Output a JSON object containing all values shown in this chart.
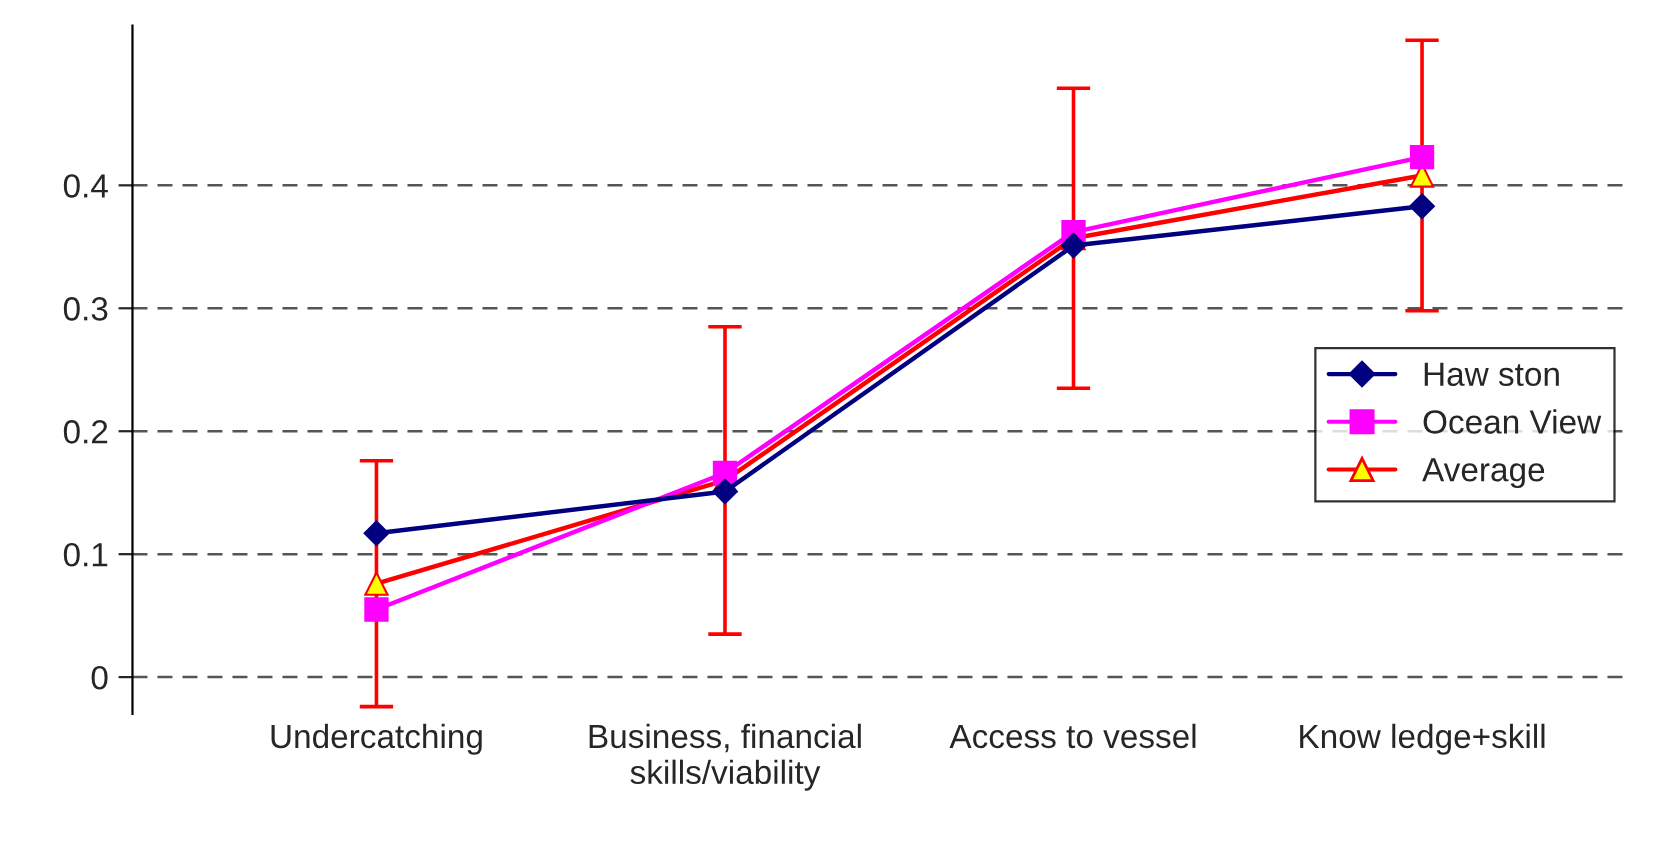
{
  "chart_data": {
    "type": "line",
    "categories": [
      "Undercatching",
      "Business, financial\nskills/viability",
      "Access to vessel",
      "Know ledge+skill"
    ],
    "series": [
      {
        "name": "Haw ston",
        "color": "#000080",
        "marker": "diamond",
        "values": [
          0.117,
          0.151,
          0.351,
          0.383
        ]
      },
      {
        "name": "Ocean View",
        "color": "#ff00ff",
        "marker": "square",
        "values": [
          0.055,
          0.166,
          0.362,
          0.423
        ]
      },
      {
        "name": "Average",
        "color": "#ff0000",
        "marker": "triangle",
        "values": [
          0.076,
          0.16,
          0.357,
          0.408
        ],
        "errors": [
          0.1,
          0.125,
          0.122,
          0.11
        ]
      }
    ],
    "ylim": [
      -0.03,
      0.53
    ],
    "yticks": [
      0,
      0.1,
      0.2,
      0.3,
      0.4
    ],
    "grid": "y",
    "legend": "right"
  }
}
